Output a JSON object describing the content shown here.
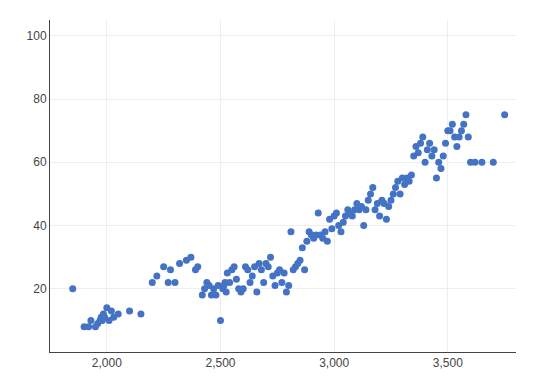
{
  "chart_data": {
    "type": "scatter",
    "x": [
      1850,
      1900,
      1920,
      1930,
      1950,
      1960,
      1970,
      1975,
      1980,
      1985,
      1990,
      2000,
      2010,
      2020,
      2030,
      2050,
      2100,
      2150,
      2200,
      2220,
      2250,
      2270,
      2280,
      2300,
      2320,
      2350,
      2370,
      2390,
      2400,
      2420,
      2430,
      2440,
      2450,
      2460,
      2470,
      2480,
      2490,
      2500,
      2510,
      2515,
      2520,
      2525,
      2530,
      2540,
      2550,
      2560,
      2570,
      2580,
      2590,
      2600,
      2610,
      2620,
      2630,
      2640,
      2650,
      2660,
      2670,
      2680,
      2690,
      2700,
      2710,
      2720,
      2730,
      2740,
      2750,
      2760,
      2770,
      2780,
      2790,
      2800,
      2810,
      2820,
      2830,
      2840,
      2850,
      2860,
      2870,
      2880,
      2890,
      2900,
      2910,
      2920,
      2930,
      2940,
      2950,
      2960,
      2970,
      2980,
      2990,
      3000,
      3010,
      3020,
      3030,
      3040,
      3050,
      3060,
      3070,
      3080,
      3090,
      3100,
      3110,
      3120,
      3130,
      3140,
      3150,
      3160,
      3170,
      3180,
      3190,
      3200,
      3210,
      3220,
      3230,
      3240,
      3250,
      3260,
      3270,
      3280,
      3290,
      3300,
      3310,
      3320,
      3330,
      3340,
      3350,
      3360,
      3370,
      3380,
      3390,
      3400,
      3410,
      3420,
      3430,
      3440,
      3450,
      3460,
      3470,
      3480,
      3490,
      3500,
      3510,
      3520,
      3530,
      3540,
      3550,
      3560,
      3570,
      3580,
      3590,
      3600,
      3620,
      3650,
      3700,
      3750
    ],
    "values": [
      20,
      8,
      8,
      10,
      8,
      9,
      10,
      11,
      10,
      12,
      11,
      14,
      10,
      13,
      11,
      12,
      13,
      12,
      22,
      24,
      27,
      22,
      26,
      22,
      28,
      29,
      30,
      26,
      27,
      18,
      20,
      22,
      21,
      18,
      20,
      18,
      21,
      10,
      20,
      21,
      22,
      19,
      25,
      22,
      26,
      27,
      23,
      20,
      19,
      20,
      27,
      26,
      22,
      24,
      27,
      19,
      28,
      26,
      22,
      28,
      27,
      30,
      24,
      21,
      25,
      26,
      22,
      25,
      19,
      21,
      38,
      26,
      27,
      28,
      29,
      33,
      26,
      35,
      38,
      37,
      36,
      37,
      44,
      37,
      36,
      38,
      35,
      42,
      39,
      43,
      44,
      40,
      38,
      41,
      43,
      45,
      44,
      43,
      45,
      47,
      45,
      46,
      40,
      45,
      48,
      50,
      52,
      45,
      47,
      43,
      48,
      47,
      42,
      46,
      48,
      50,
      52,
      54,
      50,
      55,
      53,
      55,
      54,
      56,
      62,
      65,
      63,
      66,
      68,
      60,
      64,
      66,
      62,
      64,
      55,
      60,
      58,
      62,
      66,
      70,
      70,
      72,
      68,
      65,
      68,
      70,
      72,
      75,
      68,
      60,
      60,
      60,
      60,
      75
    ],
    "color": "#4472c4",
    "xlim": [
      1750,
      3800
    ],
    "ylim": [
      0,
      105
    ],
    "xticks": [
      {
        "value": 2000,
        "label": "2,000"
      },
      {
        "value": 2500,
        "label": "2,500"
      },
      {
        "value": 3000,
        "label": "3,000"
      },
      {
        "value": 3500,
        "label": "3,500"
      }
    ],
    "yticks": [
      20,
      40,
      60,
      80,
      100
    ],
    "grid": true
  }
}
